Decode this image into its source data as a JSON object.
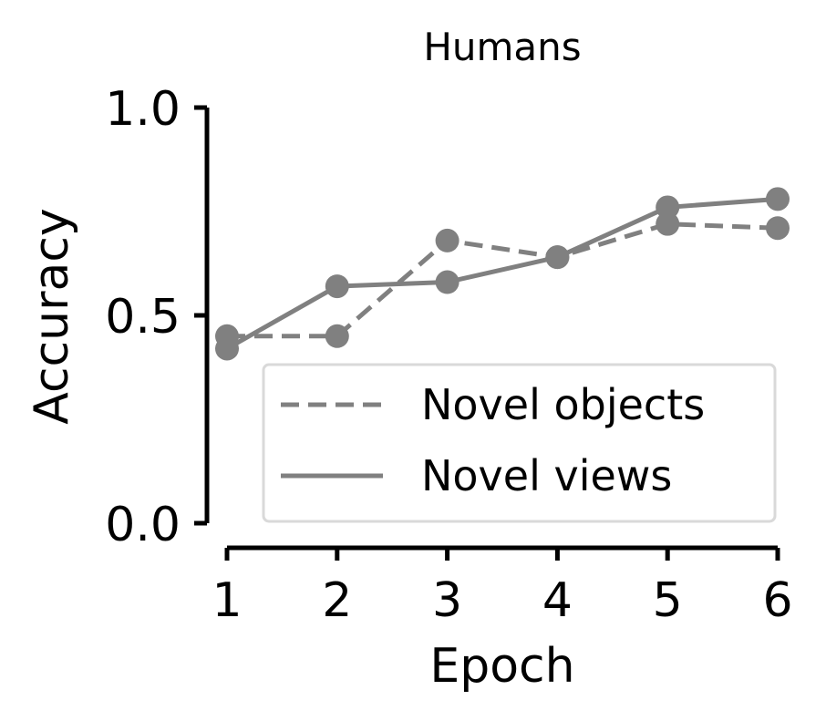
{
  "chart_data": {
    "type": "line",
    "title": "Humans",
    "xlabel": "Epoch",
    "ylabel": "Accuracy",
    "x": [
      1,
      2,
      3,
      4,
      5,
      6
    ],
    "xticks": [
      "1",
      "2",
      "3",
      "4",
      "5",
      "6"
    ],
    "yticks": [
      "0.0",
      "0.5",
      "1.0"
    ],
    "ylim": [
      0,
      1
    ],
    "xlim": [
      1,
      6
    ],
    "grid": false,
    "legend_position": "lower-right",
    "series": [
      {
        "name": "Novel objects",
        "style": "dashed",
        "color": "#808080",
        "values": [
          0.45,
          0.45,
          0.68,
          0.64,
          0.72,
          0.71
        ]
      },
      {
        "name": "Novel views",
        "style": "solid",
        "color": "#808080",
        "values": [
          0.42,
          0.57,
          0.58,
          0.64,
          0.76,
          0.78
        ]
      }
    ]
  }
}
